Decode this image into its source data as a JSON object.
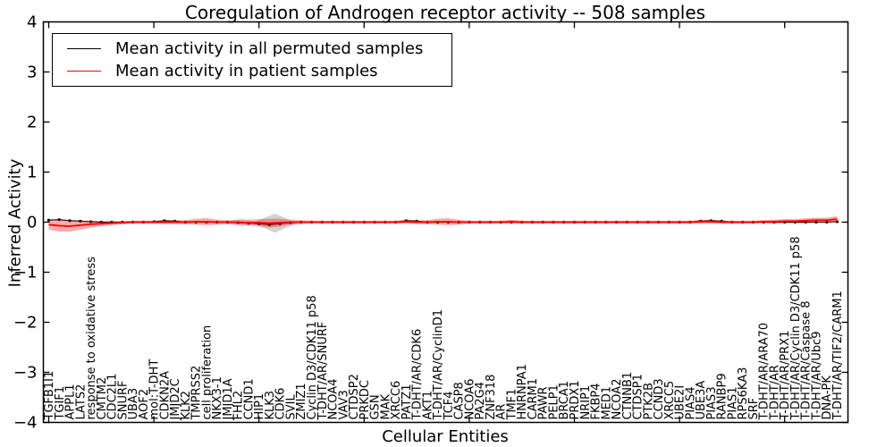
{
  "title": "Coregulation of Androgen receptor activity -- 508 samples",
  "axes": {
    "ylabel": "Inferred Activity",
    "xlabel": "Cellular Entities",
    "ylim": [
      -4,
      4
    ],
    "yticks": [
      -4,
      -3,
      -2,
      -1,
      0,
      1,
      2,
      3,
      4
    ],
    "ytick_labels": [
      "−4",
      "−3",
      "−2",
      "−1",
      "0",
      "1",
      "2",
      "3",
      "4"
    ],
    "x_major_tick_every": 10
  },
  "legend": {
    "items": [
      {
        "label": "Mean activity in all permuted samples",
        "color": "#000000"
      },
      {
        "label": "Mean activity in patient samples",
        "color": "#ff0000"
      }
    ],
    "position": "upper left"
  },
  "colors": {
    "permuted_line": "#000000",
    "patient_line": "#ff0000",
    "patient_band": "rgba(255,0,0,0.33)",
    "permuted_band": "rgba(120,120,120,0.35)",
    "spine": "#000000"
  },
  "chart_data": {
    "type": "line",
    "title": "Coregulation of Androgen receptor activity -- 508 samples",
    "xlabel": "Cellular Entities",
    "ylabel": "Inferred Activity",
    "ylim": [
      -4,
      4
    ],
    "grid": false,
    "legend_position": "upper left",
    "categories": [
      "TGFB1I1",
      "TGIF1",
      "APPL1",
      "LATS2",
      "response to oxidative stress",
      "CMTM2",
      "CDC2L1",
      "SNURF",
      "UBA3",
      "AOF2",
      "mol:T-DHT",
      "CDKN2A",
      "JMJD2C",
      "KLK2",
      "TMPRSS2",
      "cell proliferation",
      "NKX3-1",
      "JMJD1A",
      "FHL2",
      "CCND1",
      "HIP1",
      "KLK3",
      "CDK6",
      "SVIL",
      "ZMIZ1",
      "Cyclin D3/CDK11 p58",
      "T-DHT/AR/SNURF",
      "NCOA4",
      "VAV3",
      "CTDSP2",
      "PRKDC",
      "GSN",
      "MAK",
      "XRCC6",
      "PATZ1",
      "T-DHT/AR/CDK6",
      "AKT1",
      "T-DHT/AR/CyclinD1",
      "TCF4",
      "CASP8",
      "NCOA6",
      "PA2G4",
      "ZNF318",
      "AR",
      "TMF1",
      "HNRNPA1",
      "CARM1",
      "PAWR",
      "PELP1",
      "BRCA1",
      "PRDX1",
      "NRIP1",
      "FKBP4",
      "MED1",
      "NCOA2",
      "CTNNB1",
      "CTDSP1",
      "PTK2B",
      "CCND3",
      "XRCC5",
      "UBE2I",
      "PIAS4",
      "UBE3A",
      "PIAS3",
      "RANBP9",
      "PIAS1",
      "RPS6KA3",
      "SRF",
      "T-DHT/AR/ARA70",
      "T-DHT/AR",
      "T-DHT/AR/PRX1",
      "T-DHT/AR/Cyclin D3/CDK11 p58",
      "T-DHT/AR/Caspase 8",
      "T-DHT/AR/Ubc9",
      "DNA-PK",
      "T-DHT/AR/TIF2/CARM1"
    ],
    "series": [
      {
        "name": "Mean activity in all permuted samples",
        "color": "#000000",
        "marker": "dot",
        "values": [
          0.04,
          0.05,
          0.03,
          0.02,
          0.01,
          0,
          0,
          0,
          0,
          0,
          0.01,
          0.03,
          0.02,
          0,
          0,
          0,
          0,
          0,
          -0.01,
          -0.02,
          -0.03,
          -0.05,
          -0.03,
          -0.01,
          0,
          0,
          0,
          0,
          0,
          0,
          0,
          0,
          0,
          0,
          0.03,
          0.02,
          0,
          0,
          0,
          0,
          0,
          0,
          0,
          0,
          0,
          0,
          0,
          0,
          0,
          0,
          0,
          0,
          0,
          0,
          0,
          0,
          0,
          0,
          0,
          0,
          0,
          0,
          0.02,
          0.03,
          0.02,
          0,
          0,
          0,
          0,
          0,
          0,
          0,
          0,
          0,
          0,
          0.01
        ]
      },
      {
        "name": "Mean activity in patient samples",
        "color": "#ff0000",
        "marker": "none",
        "values": [
          -0.05,
          -0.07,
          -0.08,
          -0.06,
          -0.04,
          -0.03,
          -0.02,
          -0.01,
          0,
          0,
          0,
          0,
          0,
          0,
          0.01,
          0.01,
          0,
          0,
          0,
          -0.01,
          -0.01,
          -0.02,
          -0.01,
          0,
          0,
          0,
          0,
          0,
          0,
          0,
          0,
          0,
          0,
          0,
          0.01,
          0,
          0,
          0.01,
          0.01,
          0,
          0,
          0,
          0,
          0,
          0.01,
          0,
          0,
          0,
          0,
          0,
          0,
          0,
          0,
          0,
          0,
          0,
          0,
          0,
          0,
          0,
          0,
          0,
          0.01,
          0.01,
          0,
          0,
          0,
          0,
          0.01,
          0.01,
          0.02,
          0.02,
          0.03,
          0.04,
          0.04,
          0.06
        ],
        "band_half_width": [
          0.1,
          0.12,
          0.11,
          0.09,
          0.07,
          0.05,
          0.04,
          0.03,
          0.03,
          0.03,
          0.03,
          0.04,
          0.04,
          0.04,
          0.06,
          0.07,
          0.05,
          0.04,
          0.05,
          0.06,
          0.07,
          0.09,
          0.08,
          0.05,
          0.04,
          0.03,
          0.03,
          0.03,
          0.03,
          0.03,
          0.03,
          0.03,
          0.03,
          0.03,
          0.04,
          0.04,
          0.04,
          0.06,
          0.07,
          0.05,
          0.03,
          0.03,
          0.03,
          0.03,
          0.04,
          0.03,
          0.03,
          0.03,
          0.03,
          0.03,
          0.03,
          0.03,
          0.03,
          0.03,
          0.03,
          0.03,
          0.03,
          0.03,
          0.03,
          0.03,
          0.03,
          0.03,
          0.04,
          0.04,
          0.03,
          0.03,
          0.03,
          0.03,
          0.03,
          0.04,
          0.04,
          0.04,
          0.05,
          0.05,
          0.05,
          0.06
        ]
      }
    ],
    "permuted_band_diamonds": [
      {
        "near_category": "FHL2",
        "index": 18.3,
        "half_width_categories": 1.6,
        "half_height": 0.09,
        "center": -0.01,
        "opacity": 0.18
      },
      {
        "near_category": "KLK3",
        "index": 21.5,
        "half_width_categories": 2.2,
        "half_height": 0.19,
        "center": -0.02,
        "opacity": 0.35
      }
    ]
  }
}
